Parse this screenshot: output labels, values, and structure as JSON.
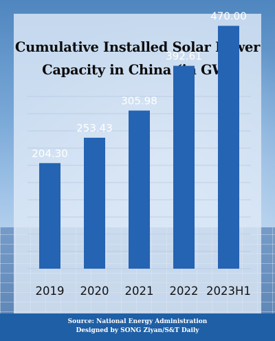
{
  "chart_data": {
    "type": "bar",
    "title": "Cumulative Installed Solar Power Capacity in China (in GW)",
    "categories": [
      "2019",
      "2020",
      "2021",
      "2022",
      "2023H1"
    ],
    "values": [
      204.3,
      253.43,
      305.98,
      392.61,
      470.0
    ],
    "value_labels": [
      "204.30",
      "253.43",
      "305.98",
      "392.61",
      "470.00"
    ],
    "ylim": [
      0,
      500
    ],
    "grid": true,
    "legend": "none",
    "bar_color": "#2563b3"
  },
  "footer": {
    "source": "Source: National Energy Administration",
    "credit": "Designed by SONG Ziyan/S&T Daily"
  },
  "colors": {
    "footer_bg": "#1f5fa5",
    "bar": "#2563b3"
  }
}
